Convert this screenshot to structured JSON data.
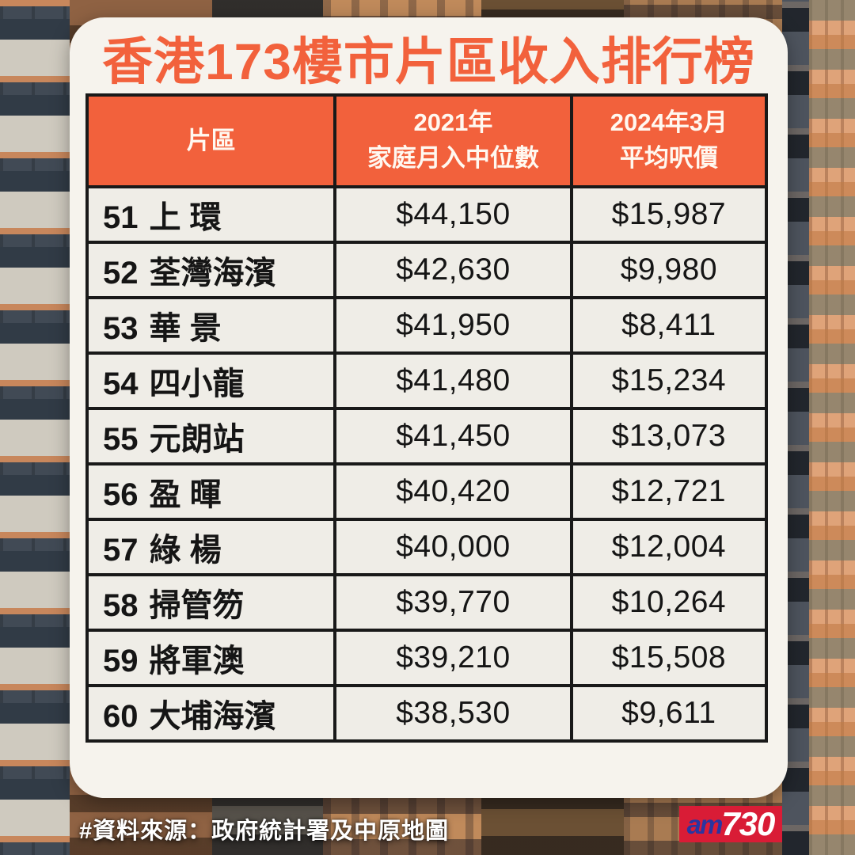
{
  "page": {
    "title": "香港173樓市片區收入排行榜",
    "source_note": "#資料來源：政府統計署及中原地圖",
    "logo": {
      "am": "am",
      "number": "730"
    }
  },
  "colors": {
    "accent_orange": "#f2613c",
    "header_text": "#fff8f0",
    "card_bg": "#f6f3ed",
    "cell_bg": "#efede7",
    "table_border": "#191919",
    "logo_red": "#d91c36",
    "logo_blue": "#2a35a0",
    "footer_text": "#ffffff"
  },
  "table": {
    "headers": {
      "district": "片區",
      "income_line1": "2021年",
      "income_line2": "家庭月入中位數",
      "price_line1": "2024年3月",
      "price_line2": "平均呎價"
    },
    "rows": [
      {
        "rank": "51",
        "name": "上 環",
        "income": "$44,150",
        "price": "$15,987"
      },
      {
        "rank": "52",
        "name": "荃灣海濱",
        "income": "$42,630",
        "price": "$9,980"
      },
      {
        "rank": "53",
        "name": "華 景",
        "income": "$41,950",
        "price": "$8,411"
      },
      {
        "rank": "54",
        "name": "四小龍",
        "income": "$41,480",
        "price": "$15,234"
      },
      {
        "rank": "55",
        "name": "元朗站",
        "income": "$41,450",
        "price": "$13,073"
      },
      {
        "rank": "56",
        "name": "盈 暉",
        "income": "$40,420",
        "price": "$12,721"
      },
      {
        "rank": "57",
        "name": "綠 楊",
        "income": "$40,000",
        "price": "$12,004"
      },
      {
        "rank": "58",
        "name": "掃管笏",
        "income": "$39,770",
        "price": "$10,264"
      },
      {
        "rank": "59",
        "name": "將軍澳",
        "income": "$39,210",
        "price": "$15,508"
      },
      {
        "rank": "60",
        "name": "大埔海濱",
        "income": "$38,530",
        "price": "$9,611"
      }
    ]
  },
  "chart_data": {
    "type": "table",
    "title": "香港173樓市片區收入排行榜",
    "columns": [
      "片區",
      "2021年家庭月入中位數",
      "2024年3月平均呎價"
    ],
    "rows": [
      {
        "rank": 51,
        "district": "上環",
        "median_monthly_household_income_2021": 44150,
        "avg_price_per_sqft_2024_03": 15987
      },
      {
        "rank": 52,
        "district": "荃灣海濱",
        "median_monthly_household_income_2021": 42630,
        "avg_price_per_sqft_2024_03": 9980
      },
      {
        "rank": 53,
        "district": "華景",
        "median_monthly_household_income_2021": 41950,
        "avg_price_per_sqft_2024_03": 8411
      },
      {
        "rank": 54,
        "district": "四小龍",
        "median_monthly_household_income_2021": 41480,
        "avg_price_per_sqft_2024_03": 15234
      },
      {
        "rank": 55,
        "district": "元朗站",
        "median_monthly_household_income_2021": 41450,
        "avg_price_per_sqft_2024_03": 13073
      },
      {
        "rank": 56,
        "district": "盈暉",
        "median_monthly_household_income_2021": 40420,
        "avg_price_per_sqft_2024_03": 12721
      },
      {
        "rank": 57,
        "district": "綠楊",
        "median_monthly_household_income_2021": 40000,
        "avg_price_per_sqft_2024_03": 12004
      },
      {
        "rank": 58,
        "district": "掃管笏",
        "median_monthly_household_income_2021": 39770,
        "avg_price_per_sqft_2024_03": 10264
      },
      {
        "rank": 59,
        "district": "將軍澳",
        "median_monthly_household_income_2021": 39210,
        "avg_price_per_sqft_2024_03": 15508
      },
      {
        "rank": 60,
        "district": "大埔海濱",
        "median_monthly_household_income_2021": 38530,
        "avg_price_per_sqft_2024_03": 9611
      }
    ],
    "source": "#資料來源：政府統計署及中原地圖"
  }
}
